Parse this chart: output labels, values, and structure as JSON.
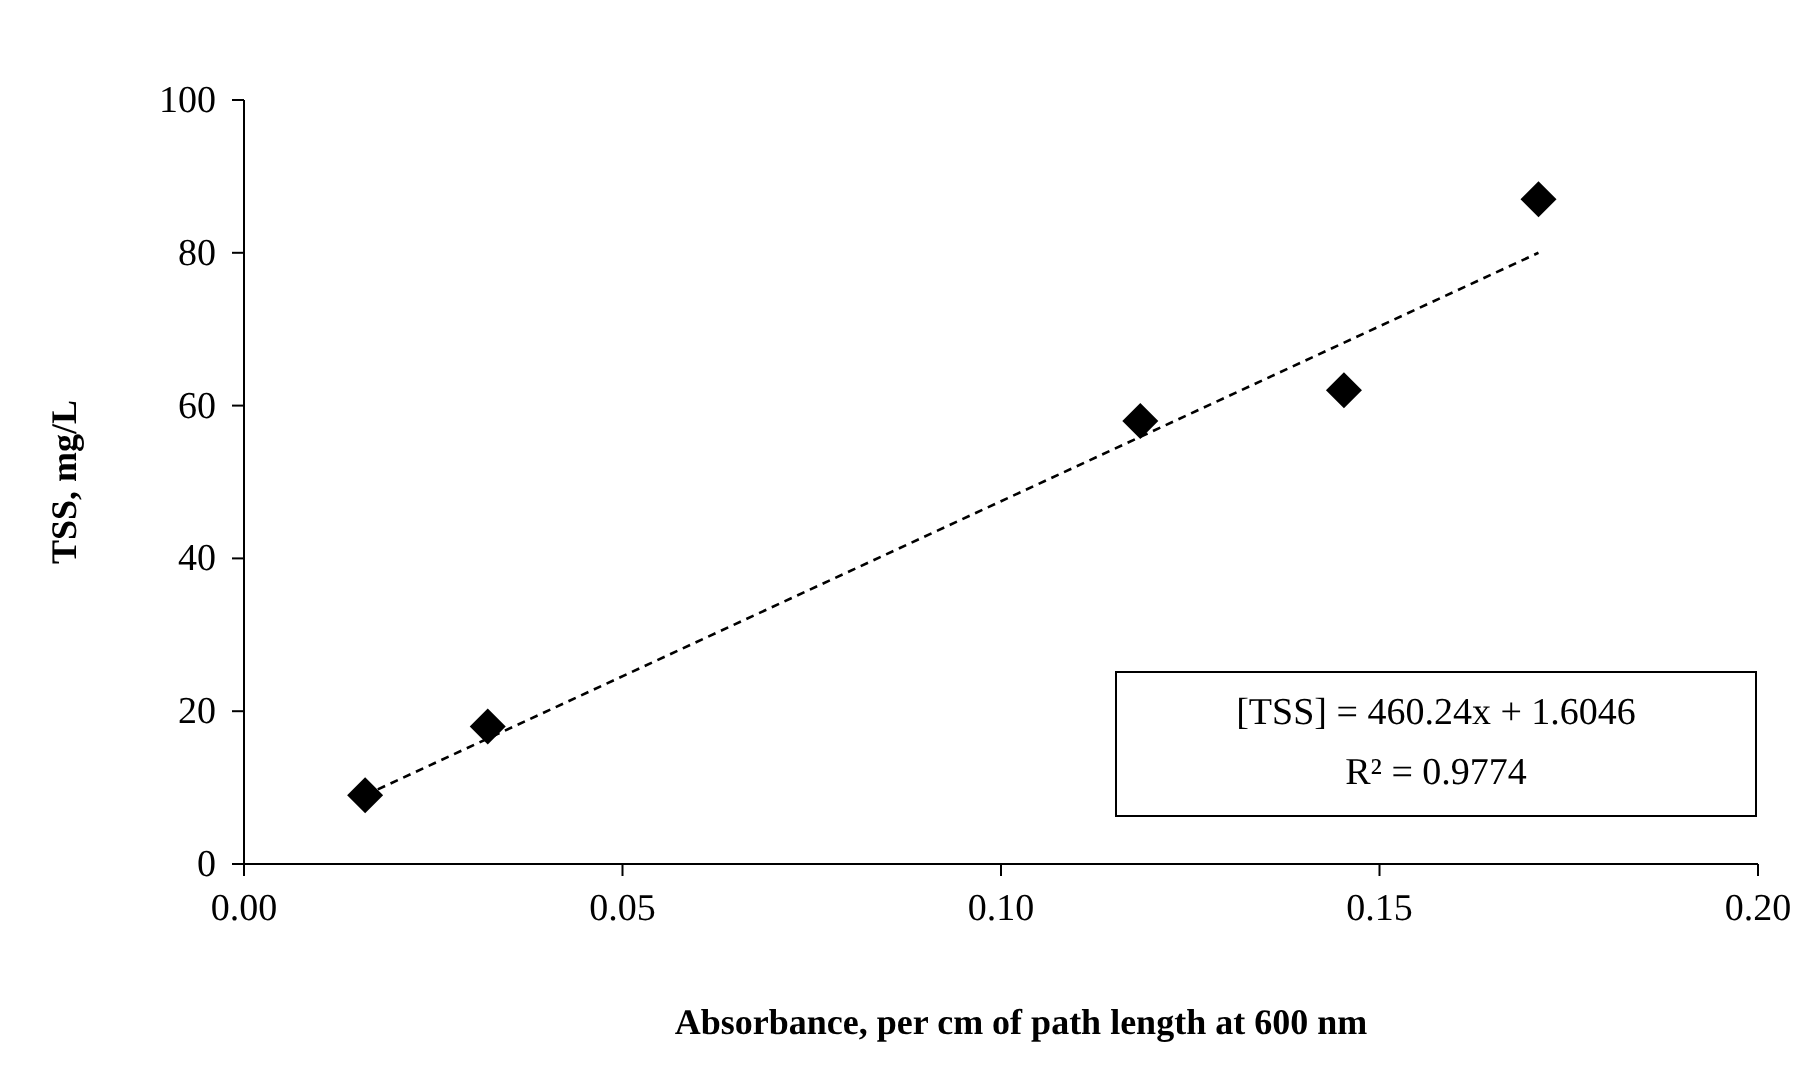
{
  "chart_data": {
    "type": "scatter",
    "xlabel": "Absorbance, per cm of path length at 600 nm",
    "ylabel": "TSS, mg/L",
    "xlim": [
      0,
      0.2
    ],
    "ylim": [
      0,
      100
    ],
    "xticks": [
      {
        "value": 0,
        "label": "0.00"
      },
      {
        "value": 0.05,
        "label": "0.05"
      },
      {
        "value": 0.1,
        "label": "0.10"
      },
      {
        "value": 0.15,
        "label": "0.15"
      },
      {
        "value": 0.2,
        "label": "0.20"
      }
    ],
    "yticks": [
      0,
      20,
      40,
      60,
      80,
      100
    ],
    "grid": false,
    "series": [
      {
        "color": "#000000",
        "marker": "diamond",
        "x": [
          0.016,
          0.0322,
          0.1184,
          0.1453,
          0.171
        ],
        "values": [
          9,
          18,
          58,
          62,
          87
        ]
      },
      {
        "type": "line",
        "color": "#000000",
        "marker": "none",
        "line_style": "dashed",
        "x": [
          0.016,
          0.171
        ],
        "values": [
          9,
          80
        ]
      }
    ],
    "annotations": [
      "[TSS] = 460.24x + 1.6046",
      "R² = 0.9774"
    ]
  }
}
